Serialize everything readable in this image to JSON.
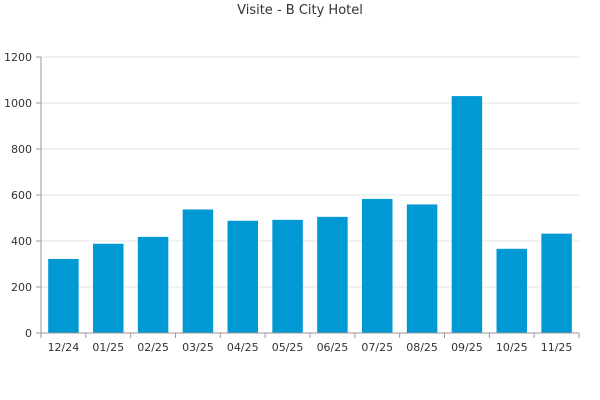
{
  "chart_data": {
    "type": "bar",
    "title": "Visite - B City Hotel",
    "xlabel": "",
    "ylabel": "",
    "categories": [
      "12/24",
      "01/25",
      "02/25",
      "03/25",
      "04/25",
      "05/25",
      "06/25",
      "07/25",
      "08/25",
      "09/25",
      "10/25",
      "11/25"
    ],
    "series": [
      {
        "values": [
          322,
          388,
          418,
          537,
          488,
          492,
          505,
          583,
          559,
          1030,
          366,
          432
        ]
      }
    ],
    "ylim": [
      0,
      1200
    ],
    "yticks": [
      0,
      200,
      400,
      600,
      800,
      1000,
      1200
    ],
    "grid": true,
    "legend": "none",
    "colors": {
      "bar": "#0099D4",
      "grid": "#E6E6E6",
      "axis": "#999999"
    }
  }
}
